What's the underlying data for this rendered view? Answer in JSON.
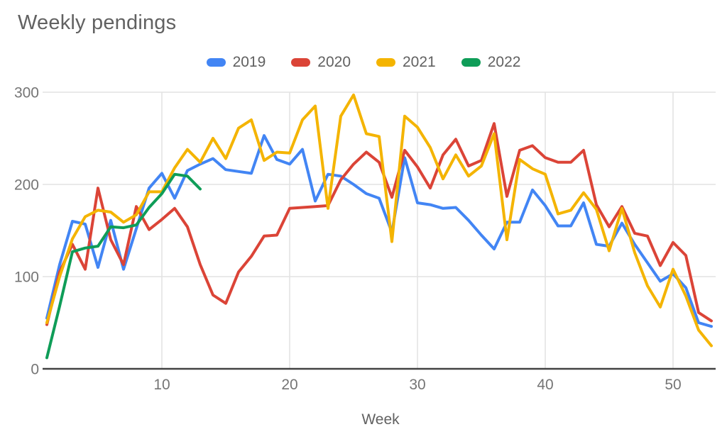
{
  "title": "Weekly pendings",
  "colors": {
    "grid": "#e2e2e2",
    "baseline": "#424242",
    "tick_text": "#757575",
    "label_text": "#616161",
    "background": "#ffffff"
  },
  "chart_data": {
    "type": "line",
    "title": "Weekly pendings",
    "x_title": "Week",
    "x_ticks": [
      10,
      20,
      30,
      40,
      50
    ],
    "y_ticks": [
      0,
      100,
      200,
      300
    ],
    "x_range": [
      1,
      53
    ],
    "y_range": [
      0,
      300
    ],
    "grid": true,
    "legend_position": "top",
    "series": [
      {
        "name": "2019",
        "color": "#4285f4",
        "start_week": 1,
        "values": [
          55,
          113,
          160,
          157,
          110,
          161,
          108,
          152,
          196,
          212,
          185,
          215,
          222,
          228,
          216,
          214,
          212,
          253,
          227,
          222,
          238,
          182,
          211,
          209,
          200,
          190,
          185,
          148,
          229,
          180,
          178,
          174,
          175,
          161,
          145,
          130,
          159,
          159,
          194,
          177,
          155,
          155,
          180,
          135,
          133,
          158,
          135,
          115,
          95,
          103,
          88,
          50,
          46
        ]
      },
      {
        "name": "2020",
        "color": "#db4437",
        "start_week": 1,
        "values": [
          48,
          105,
          135,
          108,
          196,
          140,
          113,
          176,
          151,
          162,
          174,
          154,
          113,
          80,
          71,
          105,
          122,
          144,
          145,
          174,
          175,
          176,
          177,
          205,
          222,
          235,
          224,
          186,
          237,
          219,
          196,
          232,
          249,
          220,
          226,
          266,
          187,
          237,
          242,
          229,
          224,
          224,
          237,
          178,
          154,
          176,
          147,
          144,
          112,
          137,
          123,
          61,
          52
        ]
      },
      {
        "name": "2021",
        "color": "#f4b400",
        "start_week": 1,
        "values": [
          50,
          100,
          141,
          165,
          172,
          170,
          159,
          167,
          192,
          192,
          218,
          238,
          224,
          250,
          228,
          261,
          270,
          226,
          235,
          234,
          270,
          285,
          174,
          274,
          297,
          255,
          252,
          138,
          274,
          262,
          240,
          206,
          232,
          209,
          220,
          255,
          140,
          227,
          217,
          211,
          168,
          172,
          191,
          173,
          128,
          174,
          126,
          90,
          67,
          108,
          79,
          42,
          25
        ]
      },
      {
        "name": "2022",
        "color": "#0f9d58",
        "start_week": 1,
        "values": [
          12,
          68,
          127,
          131,
          133,
          154,
          153,
          156,
          175,
          190,
          211,
          209,
          195
        ]
      }
    ]
  }
}
